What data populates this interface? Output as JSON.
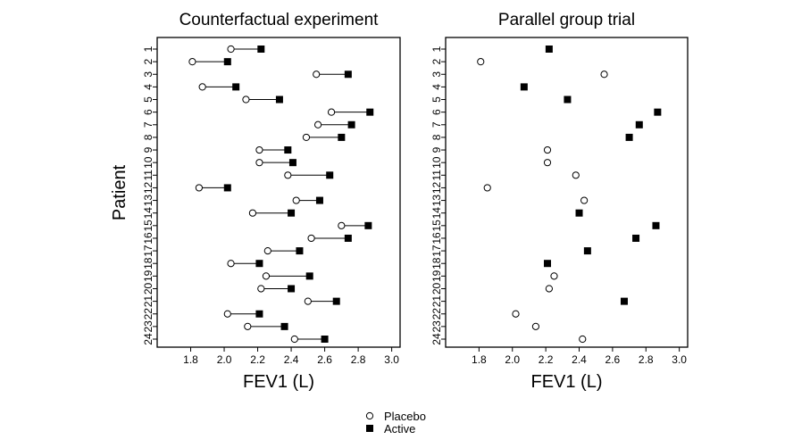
{
  "legend": {
    "placement": "bottom-center",
    "entries": [
      {
        "label": "Placebo",
        "marker": "open-circle"
      },
      {
        "label": "Active",
        "marker": "filled-square"
      }
    ]
  },
  "colors": {
    "stroke": "#000000",
    "background": "#ffffff",
    "open_marker_fill": "#ffffff"
  },
  "chart_data": [
    {
      "type": "scatter",
      "title": "Counterfactual experiment",
      "xlabel": "FEV1 (L)",
      "ylabel": "Patient",
      "xlim": [
        1.6,
        3.05
      ],
      "xticks": [
        "1.8",
        "2.0",
        "2.2",
        "2.4",
        "2.6",
        "2.8",
        "3.0"
      ],
      "categories": [
        "1",
        "2",
        "3",
        "4",
        "5",
        "6",
        "7",
        "8",
        "9",
        "10",
        "11",
        "12",
        "13",
        "14",
        "15",
        "16",
        "17",
        "18",
        "19",
        "20",
        "21",
        "22",
        "23",
        "24"
      ],
      "connect_pairs": true,
      "grid": false,
      "series": [
        {
          "name": "Placebo",
          "marker": "open-circle",
          "values": [
            2.04,
            1.81,
            2.55,
            1.87,
            2.13,
            2.64,
            2.56,
            2.49,
            2.21,
            2.21,
            2.38,
            1.85,
            2.43,
            2.17,
            2.7,
            2.52,
            2.26,
            2.04,
            2.25,
            2.22,
            2.5,
            2.02,
            2.14,
            2.42
          ]
        },
        {
          "name": "Active",
          "marker": "filled-square",
          "values": [
            2.22,
            2.02,
            2.74,
            2.07,
            2.33,
            2.87,
            2.76,
            2.7,
            2.38,
            2.41,
            2.63,
            2.02,
            2.57,
            2.4,
            2.86,
            2.74,
            2.45,
            2.21,
            2.51,
            2.4,
            2.67,
            2.21,
            2.36,
            2.6
          ]
        }
      ]
    },
    {
      "type": "scatter",
      "title": "Parallel group trial",
      "xlabel": "FEV1 (L)",
      "ylabel": "",
      "xlim": [
        1.6,
        3.05
      ],
      "xticks": [
        "1.8",
        "2.0",
        "2.2",
        "2.4",
        "2.6",
        "2.8",
        "3.0"
      ],
      "categories": [
        "1",
        "2",
        "3",
        "4",
        "5",
        "6",
        "7",
        "8",
        "9",
        "10",
        "11",
        "12",
        "13",
        "14",
        "15",
        "16",
        "17",
        "18",
        "19",
        "20",
        "21",
        "22",
        "23",
        "24"
      ],
      "connect_pairs": false,
      "grid": false,
      "points": [
        {
          "patient": "1",
          "series": "Active",
          "value": 2.22
        },
        {
          "patient": "2",
          "series": "Placebo",
          "value": 1.81
        },
        {
          "patient": "3",
          "series": "Placebo",
          "value": 2.55
        },
        {
          "patient": "4",
          "series": "Active",
          "value": 2.07
        },
        {
          "patient": "5",
          "series": "Active",
          "value": 2.33
        },
        {
          "patient": "6",
          "series": "Active",
          "value": 2.87
        },
        {
          "patient": "7",
          "series": "Active",
          "value": 2.76
        },
        {
          "patient": "8",
          "series": "Active",
          "value": 2.7
        },
        {
          "patient": "9",
          "series": "Placebo",
          "value": 2.21
        },
        {
          "patient": "10",
          "series": "Placebo",
          "value": 2.21
        },
        {
          "patient": "11",
          "series": "Placebo",
          "value": 2.38
        },
        {
          "patient": "12",
          "series": "Placebo",
          "value": 1.85
        },
        {
          "patient": "13",
          "series": "Placebo",
          "value": 2.43
        },
        {
          "patient": "14",
          "series": "Active",
          "value": 2.4
        },
        {
          "patient": "15",
          "series": "Active",
          "value": 2.86
        },
        {
          "patient": "16",
          "series": "Active",
          "value": 2.74
        },
        {
          "patient": "17",
          "series": "Active",
          "value": 2.45
        },
        {
          "patient": "18",
          "series": "Active",
          "value": 2.21
        },
        {
          "patient": "19",
          "series": "Placebo",
          "value": 2.25
        },
        {
          "patient": "20",
          "series": "Placebo",
          "value": 2.22
        },
        {
          "patient": "21",
          "series": "Active",
          "value": 2.67
        },
        {
          "patient": "22",
          "series": "Placebo",
          "value": 2.02
        },
        {
          "patient": "23",
          "series": "Placebo",
          "value": 2.14
        },
        {
          "patient": "24",
          "series": "Placebo",
          "value": 2.42
        }
      ]
    }
  ]
}
